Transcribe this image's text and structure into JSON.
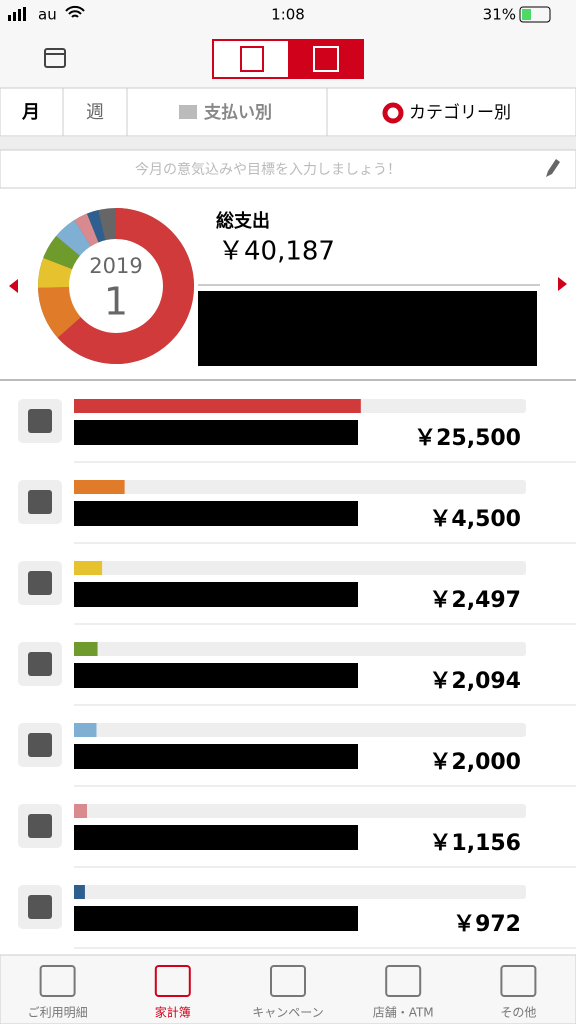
{
  "status_bar": {
    "carrier": "au",
    "time": "1:08",
    "battery": "31%"
  },
  "tabs": [
    "月",
    "週",
    "支払い別",
    "カテゴリー別"
  ],
  "goal_placeholder": "今月の意気込みや目標を入力しましょう！",
  "summary": {
    "year": "2019",
    "month": "1",
    "total_title": "総支出",
    "total": 40187,
    "total_label": "￥40,187"
  },
  "spending": {
    "values": [
      25500,
      4500,
      2497,
      2094,
      2000,
      1156,
      972
    ],
    "value_labels": [
      "￥25,500",
      "￥4,500",
      "￥2,497",
      "￥2,094",
      "￥2,000",
      "￥1,156",
      "￥972"
    ],
    "colors": [
      "#d03a3a",
      "#e07b2a",
      "#e6c22e",
      "#6f9a2c",
      "#7fb0d4",
      "#d98a8e",
      "#2f5f8f"
    ],
    "other_color": "#666666"
  },
  "bottom_nav": [
    "ご利用明細",
    "家計簿",
    "キャンペーン",
    "店舗・ATM",
    "その他"
  ]
}
